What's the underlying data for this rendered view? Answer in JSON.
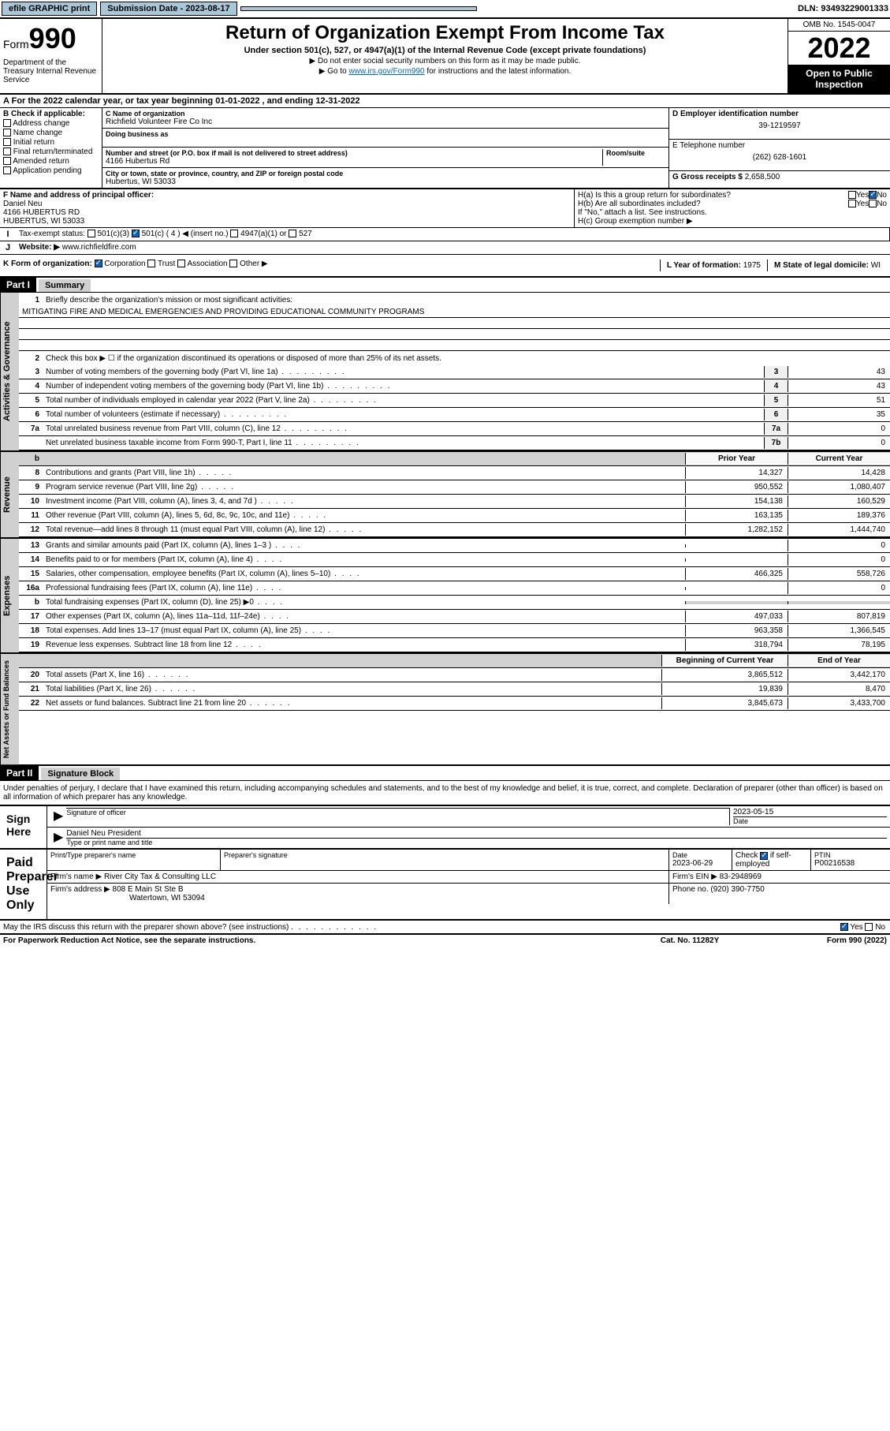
{
  "topbar": {
    "efile": "efile GRAPHIC print",
    "sub_label": "Submission Date - 2023-08-17",
    "dln": "DLN: 93493229001333"
  },
  "header": {
    "form_prefix": "Form",
    "form_num": "990",
    "dept": "Department of the Treasury Internal Revenue Service",
    "title": "Return of Organization Exempt From Income Tax",
    "subtitle": "Under section 501(c), 527, or 4947(a)(1) of the Internal Revenue Code (except private foundations)",
    "instruct1": "▶ Do not enter social security numbers on this form as it may be made public.",
    "instruct2_pre": "▶ Go to ",
    "instruct2_link": "www.irs.gov/Form990",
    "instruct2_post": " for instructions and the latest information.",
    "omb": "OMB No. 1545-0047",
    "year": "2022",
    "open": "Open to Public Inspection"
  },
  "period": {
    "text": "For the 2022 calendar year, or tax year beginning 01-01-2022    , and ending 12-31-2022"
  },
  "box_b": {
    "label": "B Check if applicable:",
    "items": [
      "Address change",
      "Name change",
      "Initial return",
      "Final return/terminated",
      "Amended return",
      "Application pending"
    ]
  },
  "box_c": {
    "name_label": "C Name of organization",
    "name": "Richfield Volunteer Fire Co Inc",
    "dba_label": "Doing business as",
    "addr_label": "Number and street (or P.O. box if mail is not delivered to street address)",
    "room_label": "Room/suite",
    "addr": "4166 Hubertus Rd",
    "city_label": "City or town, state or province, country, and ZIP or foreign postal code",
    "city": "Hubertus, WI  53033"
  },
  "box_d": {
    "ein_label": "D Employer identification number",
    "ein": "39-1219597",
    "phone_label": "E Telephone number",
    "phone": "(262) 628-1601",
    "gross_label": "G Gross receipts $",
    "gross": "2,658,500"
  },
  "box_f": {
    "label": "F Name and address of principal officer:",
    "name": "Daniel Neu",
    "addr1": "4166 HUBERTUS RD",
    "addr2": "HUBERTUS, WI  53033"
  },
  "box_h": {
    "ha": "H(a)  Is this a group return for subordinates?",
    "hb": "H(b)  Are all subordinates included?",
    "hb_note": "If \"No,\" attach a list. See instructions.",
    "hc": "H(c)  Group exemption number ▶",
    "yes": "Yes",
    "no": "No"
  },
  "box_i": {
    "label": "Tax-exempt status:",
    "opts": [
      "501(c)(3)",
      "501(c) ( 4 ) ◀ (insert no.)",
      "4947(a)(1) or",
      "527"
    ]
  },
  "box_j": {
    "label": "Website: ▶",
    "val": "www.richfieldfire.com"
  },
  "box_k": {
    "label": "K Form of organization:",
    "opts": [
      "Corporation",
      "Trust",
      "Association",
      "Other ▶"
    ]
  },
  "box_l": {
    "label": "L Year of formation:",
    "val": "1975"
  },
  "box_m": {
    "label": "M State of legal domicile:",
    "val": "WI"
  },
  "part1": {
    "header": "Part I",
    "title": "Summary",
    "line1_label": "Briefly describe the organization's mission or most significant activities:",
    "mission": "MITIGATING FIRE AND MEDICAL EMERGENCIES AND PROVIDING EDUCATIONAL COMMUNITY PROGRAMS",
    "line2": "Check this box ▶ ☐  if the organization discontinued its operations or disposed of more than 25% of its net assets.",
    "lines_activities": [
      {
        "n": "3",
        "t": "Number of voting members of the governing body (Part VI, line 1a)",
        "box": "3",
        "v": "43"
      },
      {
        "n": "4",
        "t": "Number of independent voting members of the governing body (Part VI, line 1b)",
        "box": "4",
        "v": "43"
      },
      {
        "n": "5",
        "t": "Total number of individuals employed in calendar year 2022 (Part V, line 2a)",
        "box": "5",
        "v": "51"
      },
      {
        "n": "6",
        "t": "Total number of volunteers (estimate if necessary)",
        "box": "6",
        "v": "35"
      },
      {
        "n": "7a",
        "t": "Total unrelated business revenue from Part VIII, column (C), line 12",
        "box": "7a",
        "v": "0"
      },
      {
        "n": "",
        "t": "Net unrelated business taxable income from Form 990-T, Part I, line 11",
        "box": "7b",
        "v": "0"
      }
    ],
    "col_prior": "Prior Year",
    "col_current": "Current Year",
    "lines_revenue": [
      {
        "n": "8",
        "t": "Contributions and grants (Part VIII, line 1h)",
        "p": "14,327",
        "c": "14,428"
      },
      {
        "n": "9",
        "t": "Program service revenue (Part VIII, line 2g)",
        "p": "950,552",
        "c": "1,080,407"
      },
      {
        "n": "10",
        "t": "Investment income (Part VIII, column (A), lines 3, 4, and 7d )",
        "p": "154,138",
        "c": "160,529"
      },
      {
        "n": "11",
        "t": "Other revenue (Part VIII, column (A), lines 5, 6d, 8c, 9c, 10c, and 11e)",
        "p": "163,135",
        "c": "189,376"
      },
      {
        "n": "12",
        "t": "Total revenue—add lines 8 through 11 (must equal Part VIII, column (A), line 12)",
        "p": "1,282,152",
        "c": "1,444,740"
      }
    ],
    "lines_expenses": [
      {
        "n": "13",
        "t": "Grants and similar amounts paid (Part IX, column (A), lines 1–3 )",
        "p": "",
        "c": "0"
      },
      {
        "n": "14",
        "t": "Benefits paid to or for members (Part IX, column (A), line 4)",
        "p": "",
        "c": "0"
      },
      {
        "n": "15",
        "t": "Salaries, other compensation, employee benefits (Part IX, column (A), lines 5–10)",
        "p": "466,325",
        "c": "558,726"
      },
      {
        "n": "16a",
        "t": "Professional fundraising fees (Part IX, column (A), line 11e)",
        "p": "",
        "c": "0"
      },
      {
        "n": "b",
        "t": "Total fundraising expenses (Part IX, column (D), line 25) ▶0",
        "p": "",
        "c": ""
      },
      {
        "n": "17",
        "t": "Other expenses (Part IX, column (A), lines 11a–11d, 11f–24e)",
        "p": "497,033",
        "c": "807,819"
      },
      {
        "n": "18",
        "t": "Total expenses. Add lines 13–17 (must equal Part IX, column (A), line 25)",
        "p": "963,358",
        "c": "1,366,545"
      },
      {
        "n": "19",
        "t": "Revenue less expenses. Subtract line 18 from line 12",
        "p": "318,794",
        "c": "78,195"
      }
    ],
    "col_begin": "Beginning of Current Year",
    "col_end": "End of Year",
    "lines_netassets": [
      {
        "n": "20",
        "t": "Total assets (Part X, line 16)",
        "p": "3,865,512",
        "c": "3,442,170"
      },
      {
        "n": "21",
        "t": "Total liabilities (Part X, line 26)",
        "p": "19,839",
        "c": "8,470"
      },
      {
        "n": "22",
        "t": "Net assets or fund balances. Subtract line 21 from line 20",
        "p": "3,845,673",
        "c": "3,433,700"
      }
    ],
    "vert_activities": "Activities & Governance",
    "vert_revenue": "Revenue",
    "vert_expenses": "Expenses",
    "vert_netassets": "Net Assets or Fund Balances"
  },
  "part2": {
    "header": "Part II",
    "title": "Signature Block",
    "intro": "Under penalties of perjury, I declare that I have examined this return, including accompanying schedules and statements, and to the best of my knowledge and belief, it is true, correct, and complete. Declaration of preparer (other than officer) is based on all information of which preparer has any knowledge.",
    "sign_here": "Sign Here",
    "sig_officer": "Signature of officer",
    "sig_date": "Date",
    "sig_date_val": "2023-05-15",
    "sig_name": "Daniel Neu President",
    "sig_name_label": "Type or print name and title",
    "paid": "Paid Preparer Use Only",
    "prep_name_label": "Print/Type preparer's name",
    "prep_sig_label": "Preparer's signature",
    "prep_date_label": "Date",
    "prep_date": "2023-06-29",
    "prep_check": "Check ☑ if self-employed",
    "ptin_label": "PTIN",
    "ptin": "P00216538",
    "firm_name_label": "Firm's name    ▶",
    "firm_name": "River City Tax & Consulting LLC",
    "firm_ein_label": "Firm's EIN ▶",
    "firm_ein": "83-2948969",
    "firm_addr_label": "Firm's address ▶",
    "firm_addr": "808 E Main St Ste B",
    "firm_city": "Watertown, WI  53094",
    "firm_phone_label": "Phone no.",
    "firm_phone": "(920) 390-7750",
    "discuss": "May the IRS discuss this return with the preparer shown above? (see instructions)",
    "yes": "Yes",
    "no": "No"
  },
  "footer": {
    "left": "For Paperwork Reduction Act Notice, see the separate instructions.",
    "mid": "Cat. No. 11282Y",
    "right": "Form 990 (2022)"
  }
}
